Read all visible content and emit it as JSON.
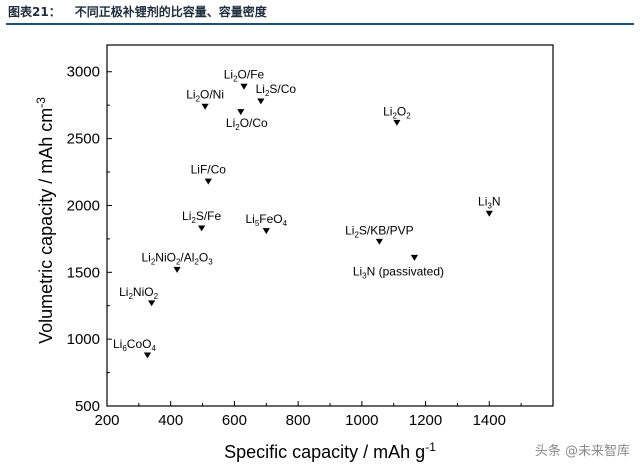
{
  "caption": {
    "label": "图表21：",
    "title": "不同正极补锂剂的比容量、容量密度"
  },
  "watermark": "头条 @未来智库",
  "chart_data": {
    "type": "scatter",
    "xlabel": "Specific capacity / mAh g",
    "xlabel_sup": "-1",
    "ylabel": "Volumetric capacity / mAh cm",
    "ylabel_sup": "-3",
    "xlim": [
      200,
      1600
    ],
    "ylim": [
      500,
      3200
    ],
    "xticks": [
      200,
      400,
      600,
      800,
      1000,
      1200,
      1400
    ],
    "yticks": [
      500,
      1000,
      1500,
      2000,
      2500,
      3000
    ],
    "marker": "down-triangle",
    "grid": false,
    "points": [
      {
        "label": "Li2O/Fe",
        "x": 630,
        "y": 2890,
        "parts": [
          [
            "Li",
            ""
          ],
          [
            "2",
            "sub"
          ],
          [
            "O/Fe",
            ""
          ]
        ]
      },
      {
        "label": "Li2S/Co",
        "x": 683,
        "y": 2780,
        "parts": [
          [
            "Li",
            ""
          ],
          [
            "2",
            "sub"
          ],
          [
            "S/Co",
            ""
          ]
        ]
      },
      {
        "label": "Li2O/Ni",
        "x": 508,
        "y": 2740,
        "parts": [
          [
            "Li",
            ""
          ],
          [
            "2",
            "sub"
          ],
          [
            "O/Ni",
            ""
          ]
        ]
      },
      {
        "label": "Li2O/Co",
        "x": 620,
        "y": 2700,
        "parts": [
          [
            "Li",
            ""
          ],
          [
            "2",
            "sub"
          ],
          [
            "O/Co",
            ""
          ]
        ]
      },
      {
        "label": "Li2O2",
        "x": 1110,
        "y": 2620,
        "parts": [
          [
            "Li",
            ""
          ],
          [
            "2",
            "sub"
          ],
          [
            "O",
            ""
          ],
          [
            "2",
            "sub"
          ]
        ]
      },
      {
        "label": "LiF/Co",
        "x": 518,
        "y": 2180,
        "parts": [
          [
            "LiF/Co",
            ""
          ]
        ]
      },
      {
        "label": "Li3N",
        "x": 1400,
        "y": 1940,
        "parts": [
          [
            "Li",
            ""
          ],
          [
            "3",
            "sub"
          ],
          [
            "N",
            ""
          ]
        ]
      },
      {
        "label": "Li2S/Fe",
        "x": 497,
        "y": 1830,
        "parts": [
          [
            "Li",
            ""
          ],
          [
            "2",
            "sub"
          ],
          [
            "S/Fe",
            ""
          ]
        ]
      },
      {
        "label": "Li5FeO4",
        "x": 700,
        "y": 1810,
        "parts": [
          [
            "Li",
            ""
          ],
          [
            "5",
            "sub"
          ],
          [
            "FeO",
            ""
          ],
          [
            "4",
            "sub"
          ]
        ]
      },
      {
        "label": "Li2S/KB/PVP",
        "x": 1055,
        "y": 1730,
        "parts": [
          [
            "Li",
            ""
          ],
          [
            "2",
            "sub"
          ],
          [
            "S/KB/PVP",
            ""
          ]
        ]
      },
      {
        "label": "Li3N (passivated)",
        "x": 1165,
        "y": 1610,
        "parts": [
          [
            "Li",
            ""
          ],
          [
            "3",
            "sub"
          ],
          [
            "N (passivated)",
            ""
          ]
        ]
      },
      {
        "label": "Li2NiO2/Al2O3",
        "x": 420,
        "y": 1520,
        "parts": [
          [
            "Li",
            ""
          ],
          [
            "2",
            "sub"
          ],
          [
            "NiO",
            ""
          ],
          [
            "2",
            "sub"
          ],
          [
            "/Al",
            ""
          ],
          [
            "2",
            "sub"
          ],
          [
            "O",
            ""
          ],
          [
            "3",
            "sub"
          ]
        ]
      },
      {
        "label": "Li2NiO2",
        "x": 340,
        "y": 1270,
        "parts": [
          [
            "Li",
            ""
          ],
          [
            "2",
            "sub"
          ],
          [
            "NiO",
            ""
          ],
          [
            "2",
            "sub"
          ]
        ]
      },
      {
        "label": "Li6CoO4",
        "x": 327,
        "y": 880,
        "parts": [
          [
            "Li",
            ""
          ],
          [
            "6",
            "sub"
          ],
          [
            "CoO",
            ""
          ],
          [
            "4",
            "sub"
          ]
        ]
      }
    ]
  }
}
